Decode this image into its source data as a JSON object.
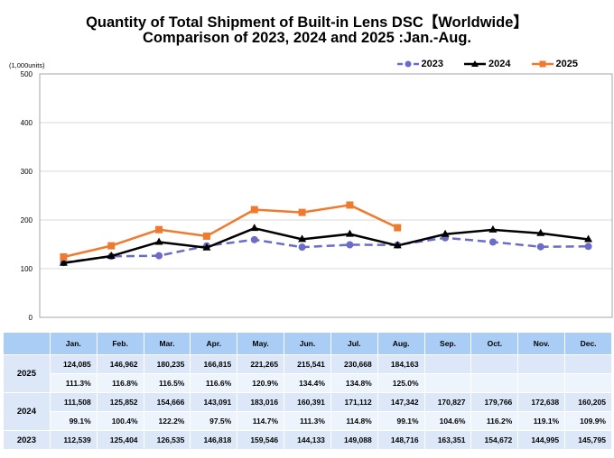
{
  "chart_data": {
    "type": "line",
    "title": "Quantity of Total Shipment of Built-in Lens DSC【Worldwide】",
    "subtitle": "Comparison of 2023, 2024 and 2025 :Jan.-Aug.",
    "ylabel": "(1,000units)",
    "xlabel": "",
    "ylim": [
      0,
      500
    ],
    "yticks": [
      0,
      100,
      200,
      300,
      400,
      500
    ],
    "grid": true,
    "legend_position": "top-right",
    "categories": [
      "Jan.",
      "Feb.",
      "Mar.",
      "Apr.",
      "May.",
      "Jun.",
      "Jul.",
      "Aug.",
      "Sep.",
      "Oct.",
      "Nov.",
      "Dec."
    ],
    "series": [
      {
        "name": "2023",
        "color": "#6b6bc8",
        "style": "dashed",
        "marker": "circle",
        "values": [
          112.539,
          125.404,
          126.535,
          146.818,
          159.546,
          144.133,
          149.088,
          148.716,
          163.351,
          154.672,
          144.995,
          145.795
        ]
      },
      {
        "name": "2024",
        "color": "#000000",
        "style": "solid",
        "marker": "triangle",
        "values": [
          111.508,
          125.852,
          154.666,
          143.091,
          183.016,
          160.391,
          171.112,
          147.342,
          170.827,
          179.766,
          172.638,
          160.205
        ]
      },
      {
        "name": "2025",
        "color": "#ef7a2e",
        "style": "solid",
        "marker": "square",
        "values": [
          124.085,
          146.962,
          180.235,
          166.815,
          221.265,
          215.541,
          230.668,
          184.163,
          null,
          null,
          null,
          null
        ]
      }
    ]
  },
  "table": {
    "months": [
      "Jan.",
      "Feb.",
      "Mar.",
      "Apr.",
      "May.",
      "Jun.",
      "Jul.",
      "Aug.",
      "Sep.",
      "Oct.",
      "Nov.",
      "Dec."
    ],
    "rows": [
      {
        "year": "2025",
        "values": [
          "124,085",
          "146,962",
          "180,235",
          "166,815",
          "221,265",
          "215,541",
          "230,668",
          "184,163",
          "",
          "",
          "",
          ""
        ],
        "ratios": [
          "111.3%",
          "116.8%",
          "116.5%",
          "116.6%",
          "120.9%",
          "134.4%",
          "134.8%",
          "125.0%",
          "",
          "",
          "",
          ""
        ]
      },
      {
        "year": "2024",
        "values": [
          "111,508",
          "125,852",
          "154,666",
          "143,091",
          "183,016",
          "160,391",
          "171,112",
          "147,342",
          "170,827",
          "179,766",
          "172,638",
          "160,205"
        ],
        "ratios": [
          "99.1%",
          "100.4%",
          "122.2%",
          "97.5%",
          "114.7%",
          "111.3%",
          "114.8%",
          "99.1%",
          "104.6%",
          "116.2%",
          "119.1%",
          "109.9%"
        ]
      },
      {
        "year": "2023",
        "values": [
          "112,539",
          "125,404",
          "126,535",
          "146,818",
          "159,546",
          "144,133",
          "149,088",
          "148,716",
          "163,351",
          "154,672",
          "144,995",
          "145,795"
        ]
      }
    ]
  }
}
